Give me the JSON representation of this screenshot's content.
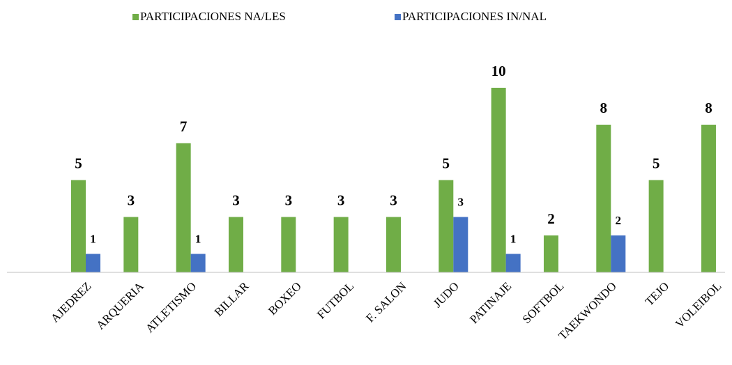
{
  "chart_data": {
    "type": "bar",
    "categories": [
      "AJEDREZ",
      "ARQUERIA",
      "ATLETISMO",
      "BILLAR",
      "BOXEO",
      "FUTBOL",
      "F. SALON",
      "JUDO",
      "PATINAJE",
      "SOFTBOL",
      "TAEKWONDO",
      "TEJO",
      "VOLEIBOL"
    ],
    "series": [
      {
        "name": "PARTICIPACIONES NA/LES",
        "color": "#70ad47",
        "values": [
          5,
          3,
          7,
          3,
          3,
          3,
          3,
          5,
          10,
          2,
          8,
          5,
          8
        ]
      },
      {
        "name": "PARTICIPACIONES IN/NAL",
        "color": "#4472c4",
        "values": [
          1,
          null,
          1,
          null,
          null,
          null,
          null,
          3,
          1,
          null,
          2,
          null,
          null
        ]
      }
    ],
    "ylim": [
      0,
      12
    ],
    "legend": "top"
  }
}
